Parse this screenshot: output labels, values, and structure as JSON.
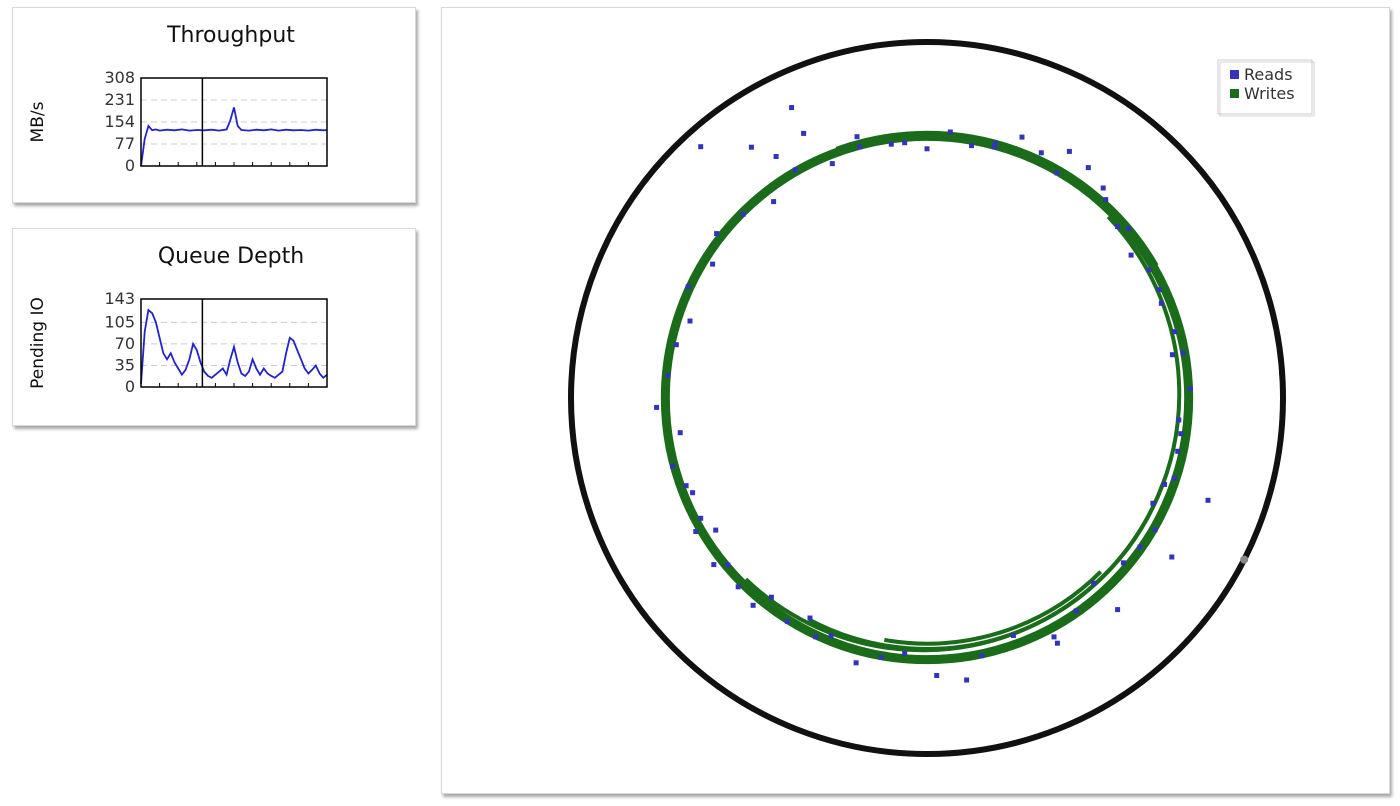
{
  "colors": {
    "reads": "#3333bb",
    "writes": "#1a6b1a",
    "disk_ring": "#111111",
    "line": "#2222cc",
    "grid": "#cccccc"
  },
  "chart_data": [
    {
      "id": "throughput",
      "type": "line",
      "title": "Throughput",
      "ylabel": "MB/s",
      "xlabel": "",
      "ylim": [
        0,
        308
      ],
      "yticks": [
        0,
        77,
        154,
        231,
        308
      ],
      "grid": true,
      "marker_x": 0.33,
      "x": [
        0,
        0.02,
        0.04,
        0.06,
        0.08,
        0.1,
        0.14,
        0.18,
        0.22,
        0.26,
        0.3,
        0.34,
        0.38,
        0.42,
        0.46,
        0.48,
        0.5,
        0.52,
        0.54,
        0.58,
        0.62,
        0.66,
        0.7,
        0.74,
        0.78,
        0.82,
        0.86,
        0.9,
        0.94,
        0.98,
        1.0
      ],
      "series": [
        {
          "name": "",
          "values": [
            0,
            95,
            140,
            125,
            128,
            124,
            127,
            125,
            128,
            124,
            126,
            125,
            127,
            124,
            128,
            160,
            205,
            140,
            126,
            124,
            127,
            125,
            128,
            124,
            127,
            125,
            126,
            124,
            127,
            125,
            126
          ]
        }
      ]
    },
    {
      "id": "queue_depth",
      "type": "line",
      "title": "Queue Depth",
      "ylabel": "Pending IO",
      "xlabel": "",
      "ylim": [
        0,
        143
      ],
      "yticks": [
        0,
        35,
        70,
        105,
        143
      ],
      "grid": true,
      "marker_x": 0.33,
      "x": [
        0,
        0.02,
        0.04,
        0.06,
        0.08,
        0.1,
        0.12,
        0.14,
        0.16,
        0.18,
        0.2,
        0.22,
        0.24,
        0.26,
        0.28,
        0.3,
        0.32,
        0.34,
        0.36,
        0.38,
        0.4,
        0.42,
        0.44,
        0.46,
        0.48,
        0.5,
        0.52,
        0.54,
        0.56,
        0.58,
        0.6,
        0.62,
        0.64,
        0.66,
        0.68,
        0.7,
        0.72,
        0.74,
        0.76,
        0.78,
        0.8,
        0.82,
        0.84,
        0.86,
        0.88,
        0.9,
        0.92,
        0.94,
        0.96,
        0.98,
        1.0
      ],
      "series": [
        {
          "name": "",
          "values": [
            5,
            90,
            125,
            120,
            105,
            80,
            55,
            45,
            55,
            40,
            30,
            20,
            28,
            45,
            70,
            60,
            40,
            25,
            18,
            15,
            20,
            25,
            30,
            20,
            45,
            65,
            40,
            22,
            18,
            25,
            45,
            30,
            20,
            30,
            22,
            18,
            15,
            20,
            25,
            55,
            80,
            75,
            60,
            45,
            30,
            22,
            28,
            35,
            22,
            15,
            20
          ]
        }
      ]
    },
    {
      "id": "disk_map",
      "type": "scatter",
      "title": "",
      "legend": {
        "position": "top-right",
        "entries": [
          "Reads",
          "Writes"
        ]
      },
      "platter": {
        "outer_radius": 1.0,
        "track_radius": 0.74
      },
      "writes_arcs": [
        {
          "r": 0.735,
          "start": 0,
          "end": 360
        },
        {
          "r": 0.72,
          "start": -45,
          "end": 135
        },
        {
          "r": 0.705,
          "start": 20,
          "end": 118
        },
        {
          "r": 0.69,
          "start": 45,
          "end": 100
        },
        {
          "r": 0.745,
          "start": 250,
          "end": 330
        }
      ],
      "series": [
        {
          "name": "Reads",
          "points": [
            [
              0.8,
              238
            ],
            [
              0.82,
              245
            ],
            [
              0.76,
              255
            ],
            [
              0.72,
              262
            ],
            [
              0.7,
              270
            ],
            [
              0.72,
              280
            ],
            [
              0.74,
              285
            ],
            [
              0.78,
              290
            ],
            [
              0.8,
              300
            ],
            [
              0.79,
              305
            ],
            [
              0.75,
              312
            ],
            [
              0.72,
              318
            ],
            [
              0.7,
              325
            ],
            [
              0.72,
              330
            ],
            [
              0.71,
              338
            ],
            [
              0.72,
              345
            ],
            [
              0.7,
              350
            ],
            [
              0.74,
              358
            ],
            [
              0.71,
              5
            ],
            [
              0.72,
              12
            ],
            [
              0.73,
              18
            ],
            [
              0.7,
              25
            ],
            [
              0.74,
              30
            ],
            [
              0.72,
              40
            ],
            [
              0.7,
              48
            ],
            [
              0.73,
              55
            ],
            [
              0.76,
              62
            ],
            [
              0.71,
              70
            ],
            [
              0.74,
              78
            ],
            [
              0.8,
              82
            ],
            [
              0.78,
              88
            ],
            [
              0.72,
              95
            ],
            [
              0.74,
              100
            ],
            [
              0.77,
              105
            ],
            [
              0.72,
              112
            ],
            [
              0.7,
              118
            ],
            [
              0.74,
              122
            ],
            [
              0.71,
              128
            ],
            [
              0.75,
              135
            ],
            [
              0.73,
              140
            ],
            [
              0.7,
              148
            ],
            [
              0.72,
              152
            ],
            [
              0.71,
              158
            ],
            [
              0.74,
              165
            ],
            [
              0.7,
              172
            ],
            [
              0.76,
              178
            ],
            [
              0.73,
              185
            ],
            [
              0.72,
              192
            ],
            [
              0.7,
              198
            ],
            [
              0.74,
              205
            ],
            [
              0.71,
              212
            ],
            [
              0.75,
              218
            ],
            [
              0.73,
              225
            ],
            [
              0.7,
              232
            ],
            [
              0.74,
              240
            ],
            [
              0.71,
              248
            ],
            [
              0.73,
              255
            ],
            [
              0.72,
              265
            ],
            [
              0.75,
              275
            ],
            [
              0.73,
              285
            ],
            [
              0.76,
              295
            ],
            [
              0.73,
              300
            ],
            [
              0.77,
              310
            ],
            [
              0.74,
              320
            ],
            [
              0.72,
              335
            ],
            [
              0.73,
              350
            ],
            [
              0.72,
              8
            ],
            [
              0.71,
              20
            ],
            [
              0.73,
              35
            ],
            [
              0.9,
              245
            ],
            [
              0.86,
              235
            ],
            [
              0.95,
              228
            ],
            [
              0.78,
              62
            ],
            [
              0.8,
              48
            ],
            [
              0.82,
              33
            ],
            [
              0.84,
              20
            ],
            [
              0.76,
              142
            ],
            [
              0.75,
              150
            ],
            [
              0.72,
              160
            ],
            [
              0.76,
              130
            ],
            [
              0.74,
              115
            ]
          ]
        }
      ]
    }
  ]
}
